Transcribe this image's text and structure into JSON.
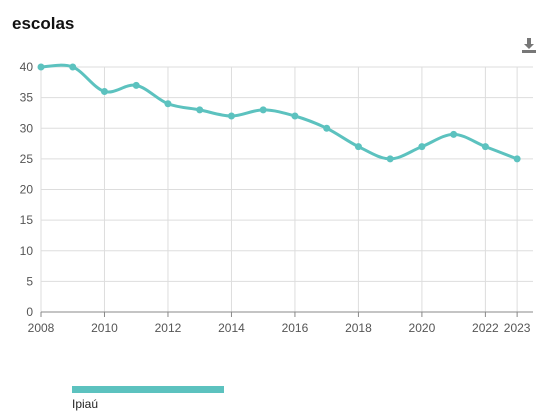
{
  "title": "escolas",
  "download_icon": "download-icon",
  "colors": {
    "series": "#5cc2bf",
    "grid": "#dddddd",
    "axis": "#888888",
    "tick_text": "#555555"
  },
  "chart_data": {
    "type": "line",
    "title": "escolas",
    "xlabel": "",
    "ylabel": "",
    "xlim": [
      2008,
      2023.5
    ],
    "ylim": [
      0,
      40
    ],
    "x_ticks": [
      2008,
      2010,
      2012,
      2014,
      2016,
      2018,
      2020,
      2022,
      2023
    ],
    "y_ticks": [
      0,
      5,
      10,
      15,
      20,
      25,
      30,
      35,
      40
    ],
    "grid": true,
    "legend_position": "bottom-left",
    "series": [
      {
        "name": "Ipiaú",
        "x": [
          2008,
          2009,
          2010,
          2011,
          2012,
          2013,
          2014,
          2015,
          2016,
          2017,
          2018,
          2019,
          2020,
          2021,
          2022,
          2023
        ],
        "values": [
          40,
          40,
          36,
          37,
          34,
          33,
          32,
          33,
          32,
          30,
          27,
          25,
          27,
          29,
          27,
          25
        ]
      }
    ]
  }
}
